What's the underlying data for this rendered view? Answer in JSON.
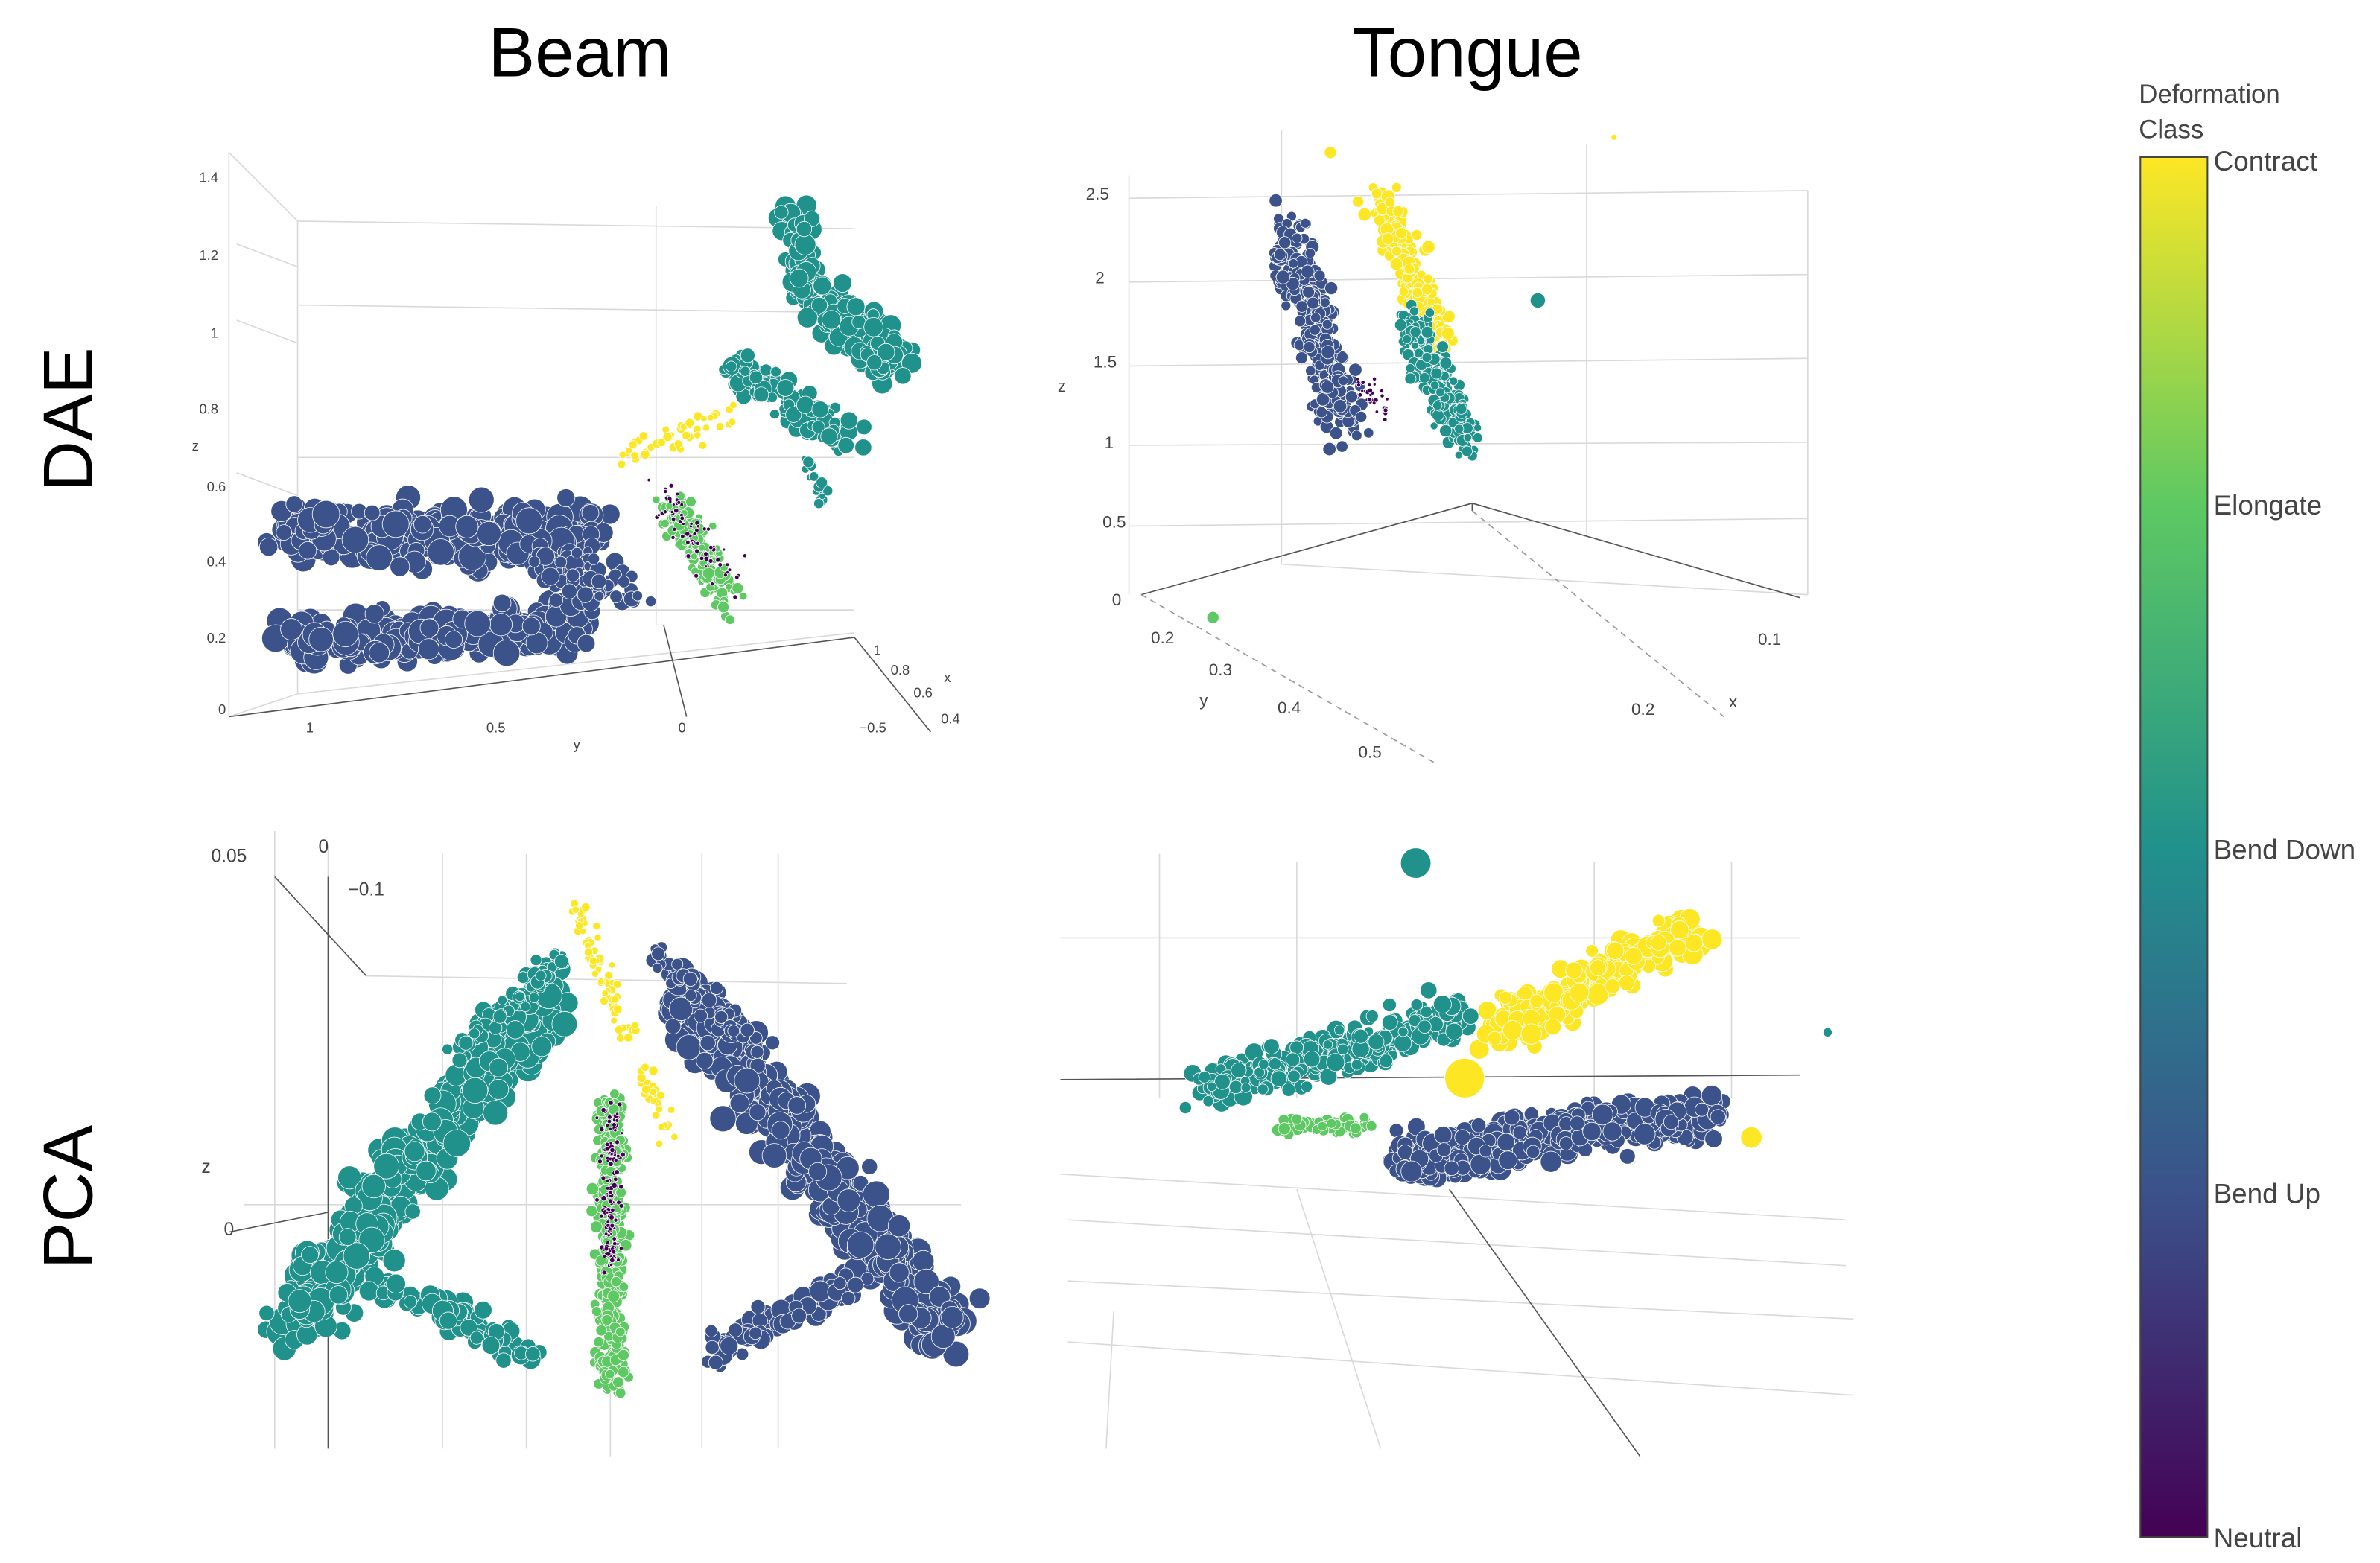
{
  "columns": [
    "Beam",
    "Tongue"
  ],
  "rows": [
    "DAE",
    "PCA"
  ],
  "colorbar": {
    "title_lines": [
      "Deformation",
      "Class"
    ],
    "labels": [
      "Contract",
      "Elongate",
      "Bend Down",
      "Bend Up",
      "Neutral"
    ],
    "colors": [
      "#fde725",
      "#5ec962",
      "#21918c",
      "#3b528b",
      "#440154"
    ]
  },
  "panels": [
    {
      "labels": [
        "1.4",
        "1.2",
        "1",
        "0.8",
        "0.6",
        "0.4",
        "0.2",
        "0",
        "z",
        "1",
        "0.5",
        "0",
        "−0.5",
        "y",
        "1",
        "0.8",
        "0.6",
        "0.4",
        "x"
      ]
    },
    {
      "labels": [
        "2.5",
        "2",
        "1.5",
        "1",
        "0.5",
        "0",
        "z",
        "0.2",
        "0.3",
        "0.4",
        "0.5",
        "y",
        "0.1",
        "0.2",
        "x"
      ]
    },
    {
      "labels": [
        "0.05",
        "0",
        "−0.1",
        "z",
        "0"
      ]
    },
    {
      "labels": []
    }
  ]
}
